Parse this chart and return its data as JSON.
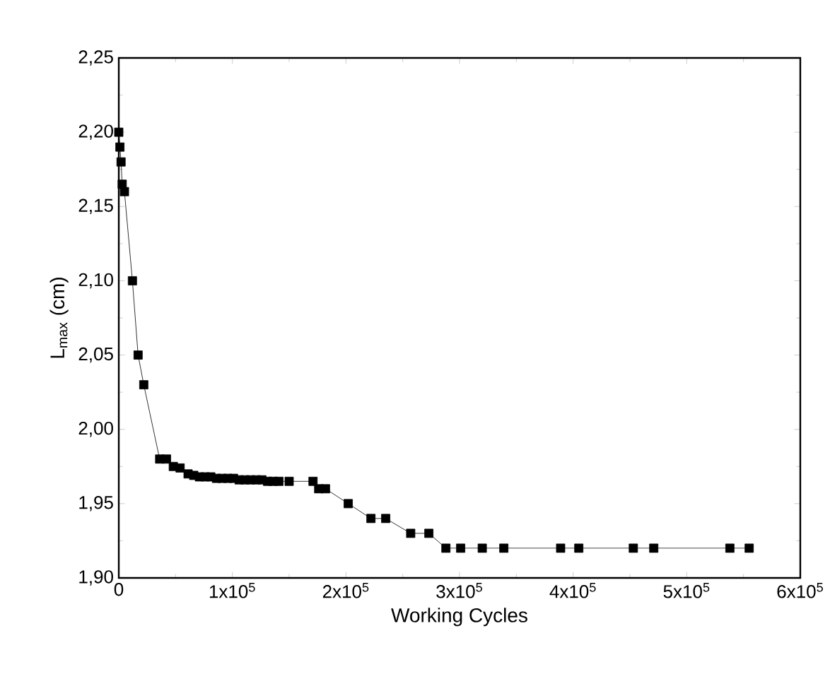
{
  "chart_data": {
    "type": "line",
    "xlabel": "Working Cycles",
    "ylabel": "L$_{max}$ (cm)",
    "marker": "square",
    "line_style": "solid",
    "color": "#000000",
    "x": [
      0,
      1000,
      2000,
      3000,
      5000,
      12000,
      17000,
      22000,
      36000,
      42000,
      48000,
      54000,
      61000,
      66000,
      71000,
      76000,
      81000,
      86000,
      91000,
      96000,
      101000,
      106000,
      111000,
      116000,
      121000,
      126000,
      131000,
      136000,
      141000,
      150000,
      171000,
      176000,
      182000,
      202000,
      222000,
      235000,
      257000,
      273000,
      288000,
      301000,
      320000,
      339000,
      389000,
      405000,
      453000,
      471000,
      538000,
      555000
    ],
    "values": [
      2.2,
      2.19,
      2.18,
      2.165,
      2.16,
      2.1,
      2.05,
      2.03,
      1.98,
      1.98,
      1.975,
      1.974,
      1.97,
      1.969,
      1.968,
      1.968,
      1.968,
      1.967,
      1.967,
      1.967,
      1.967,
      1.966,
      1.966,
      1.966,
      1.966,
      1.966,
      1.965,
      1.965,
      1.965,
      1.965,
      1.965,
      1.96,
      1.96,
      1.95,
      1.94,
      1.94,
      1.93,
      1.93,
      1.92,
      1.92,
      1.92,
      1.92,
      1.92,
      1.92,
      1.92,
      1.92,
      1.92,
      1.92
    ],
    "xlim": [
      0,
      600000
    ],
    "ylim": [
      1.9,
      2.25
    ],
    "xticks": [
      0,
      {
        "value": 100000,
        "label": "1x10$^{5}$"
      },
      {
        "value": 200000,
        "label": "2x10$^{5}$"
      },
      {
        "value": 300000,
        "label": "3x10$^{5}$"
      },
      {
        "value": 400000,
        "label": "4x10$^{5}$"
      },
      {
        "value": 500000,
        "label": "5x10$^{5}$"
      },
      {
        "value": 600000,
        "label": "6x10$^{5}$"
      }
    ],
    "yticks": [
      {
        "value": 1.9,
        "label": "1,90"
      },
      {
        "value": 1.95,
        "label": "1,95"
      },
      {
        "value": 2.0,
        "label": "2,00"
      },
      {
        "value": 2.05,
        "label": "2,05"
      },
      {
        "value": 2.1,
        "label": "2,10"
      },
      {
        "value": 2.15,
        "label": "2,15"
      },
      {
        "value": 2.2,
        "label": "2,20"
      },
      {
        "value": 2.25,
        "label": "2,25"
      }
    ]
  }
}
